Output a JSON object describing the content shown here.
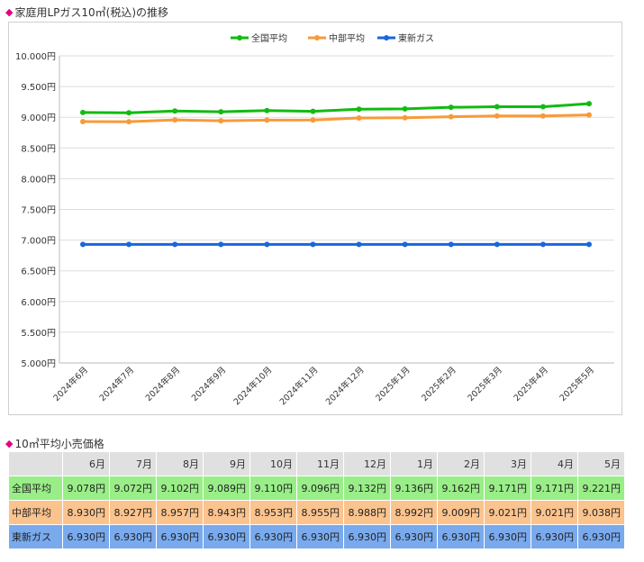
{
  "chart_title": "家庭用LPガス10㎥(税込)の推移",
  "table_title": "10㎥平均小売価格",
  "chart_data": {
    "type": "line",
    "title": "家庭用LPガス10㎥(税込)の推移",
    "categories": [
      "2024年6月",
      "2024年7月",
      "2024年8月",
      "2024年9月",
      "2024年10月",
      "2024年11月",
      "2024年12月",
      "2025年1月",
      "2025年2月",
      "2025年3月",
      "2025年4月",
      "2025年5月"
    ],
    "y_ticks": [
      "10.000円",
      "9.500円",
      "9.000円",
      "8.500円",
      "8.000円",
      "7.500円",
      "7.000円",
      "6.500円",
      "6.000円",
      "5.500円",
      "5.000円"
    ],
    "ylim": [
      5000,
      10000
    ],
    "grid": true,
    "legend": "top-center",
    "series": [
      {
        "name": "全国平均",
        "color": "#11bb11",
        "values": [
          9078,
          9072,
          9102,
          9089,
          9110,
          9096,
          9132,
          9136,
          9162,
          9171,
          9171,
          9221
        ]
      },
      {
        "name": "中部平均",
        "color": "#f79a3a",
        "values": [
          8930,
          8927,
          8957,
          8943,
          8953,
          8955,
          8988,
          8992,
          9009,
          9021,
          9021,
          9038
        ]
      },
      {
        "name": "東新ガス",
        "color": "#1a66dd",
        "values": [
          6930,
          6930,
          6930,
          6930,
          6930,
          6930,
          6930,
          6930,
          6930,
          6930,
          6930,
          6930
        ]
      }
    ]
  },
  "table": {
    "columns": [
      "6月",
      "7月",
      "8月",
      "9月",
      "10月",
      "11月",
      "12月",
      "1月",
      "2月",
      "3月",
      "4月",
      "5月"
    ],
    "rows": [
      {
        "label": "全国平均",
        "cells": [
          "9.078円",
          "9.072円",
          "9.102円",
          "9.089円",
          "9.110円",
          "9.096円",
          "9.132円",
          "9.136円",
          "9.162円",
          "9.171円",
          "9.171円",
          "9.221円"
        ]
      },
      {
        "label": "中部平均",
        "cells": [
          "8.930円",
          "8.927円",
          "8.957円",
          "8.943円",
          "8.953円",
          "8.955円",
          "8.988円",
          "8.992円",
          "9.009円",
          "9.021円",
          "9.021円",
          "9.038円"
        ]
      },
      {
        "label": "東新ガス",
        "cells": [
          "6.930円",
          "6.930円",
          "6.930円",
          "6.930円",
          "6.930円",
          "6.930円",
          "6.930円",
          "6.930円",
          "6.930円",
          "6.930円",
          "6.930円",
          "6.930円"
        ]
      }
    ]
  }
}
